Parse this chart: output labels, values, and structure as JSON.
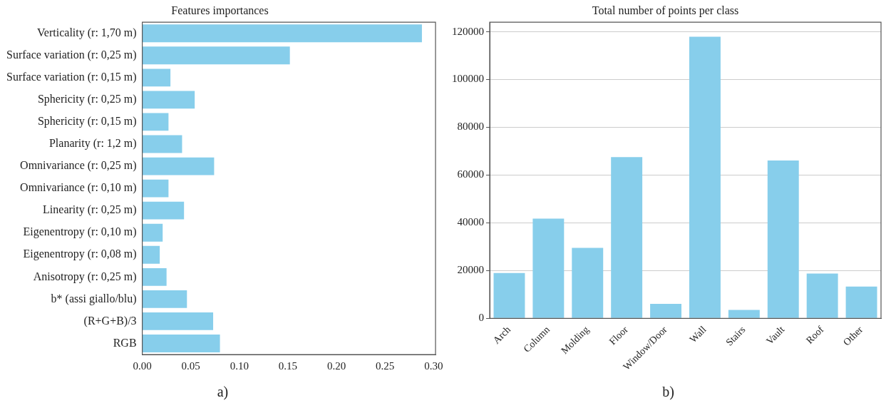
{
  "chart_data": [
    {
      "type": "bar",
      "title": "Features importances",
      "orientation": "horizontal",
      "categories": [
        "Verticality (r: 1,70 m)",
        "Surface variation (r: 0,25 m)",
        "Surface variation (r: 0,15 m)",
        "Sphericity (r: 0,25 m)",
        "Sphericity (r: 0,15 m)",
        "Planarity (r: 1,2 m)",
        "Omnivariance (r: 0,25 m)",
        "Omnivariance (r: 0,10 m)",
        "Linearity (r: 0,25 m)",
        "Eigenentropy (r: 0,10 m)",
        "Eigenentropy (r: 0,08 m)",
        "Anisotropy (r: 0,25 m)",
        "b* (assi giallo/blu)",
        "(R+G+B)/3",
        "RGB"
      ],
      "values": [
        0.288,
        0.152,
        0.029,
        0.054,
        0.027,
        0.041,
        0.074,
        0.027,
        0.043,
        0.021,
        0.018,
        0.025,
        0.046,
        0.073,
        0.08
      ],
      "color": "#87ceeb",
      "xlim": [
        0,
        0.302
      ],
      "xticks": [
        {
          "value": 0,
          "label": "0.00"
        },
        {
          "value": 0.05,
          "label": "0.05"
        },
        {
          "value": 0.1,
          "label": "0.10"
        },
        {
          "value": 0.15,
          "label": "0.15"
        },
        {
          "value": 0.2,
          "label": "0.20"
        },
        {
          "value": 0.25,
          "label": "0.25"
        },
        {
          "value": 0.3,
          "label": "0.30"
        }
      ],
      "annotations": [
        "a)"
      ]
    },
    {
      "type": "bar",
      "title": "Total number of points per class",
      "categories": [
        "Arch",
        "Column",
        "Molding",
        "Floor",
        "Window/Door",
        "Wall",
        "Stairs",
        "Vault",
        "Roof",
        "Other"
      ],
      "values": [
        19000,
        41800,
        29500,
        67500,
        6100,
        117900,
        3500,
        66100,
        18800,
        13300
      ],
      "color": "#87ceeb",
      "ylim": [
        0,
        124000
      ],
      "yticks": [
        0,
        20000,
        40000,
        60000,
        80000,
        100000,
        120000
      ],
      "grid": "y",
      "annotations": [
        "b)"
      ]
    }
  ]
}
